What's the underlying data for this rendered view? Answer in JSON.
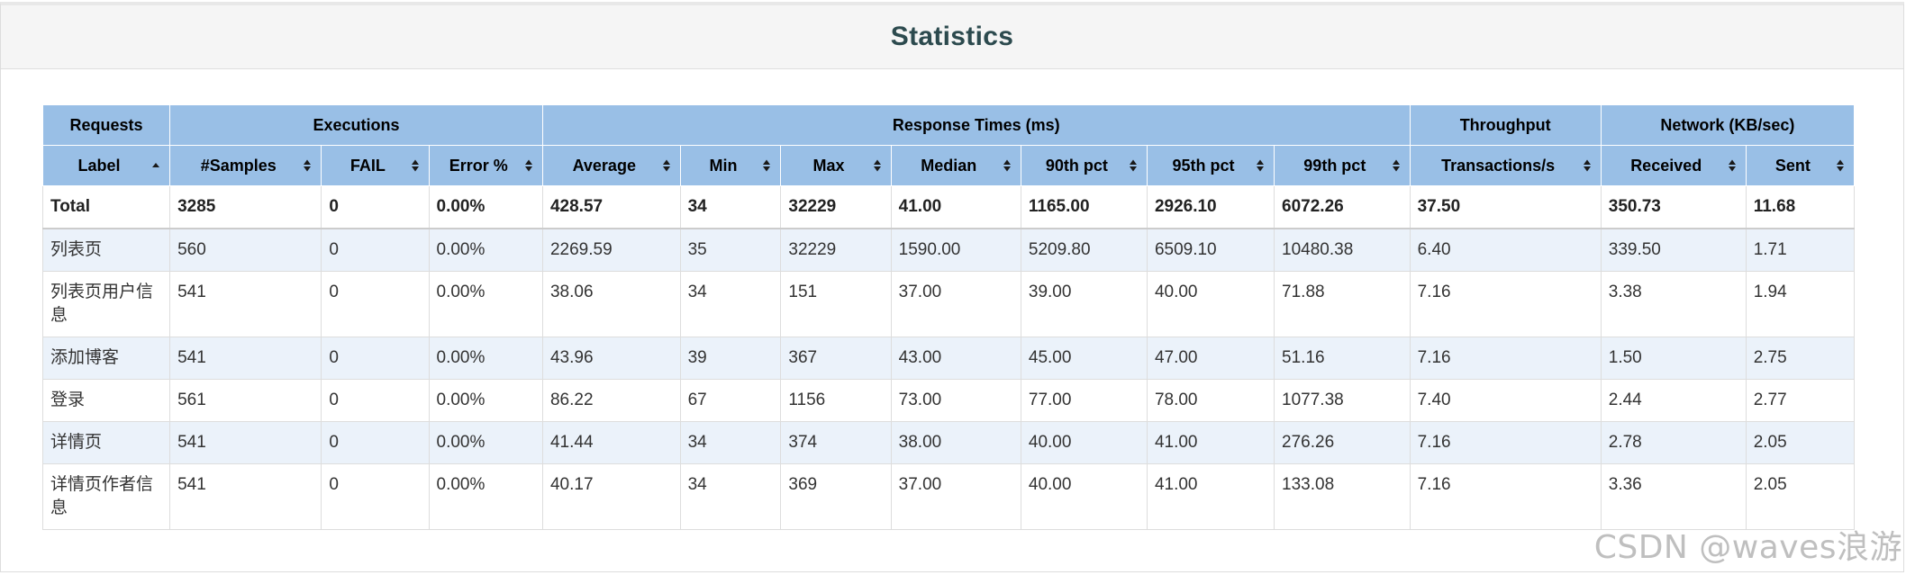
{
  "panel": {
    "title": "Statistics"
  },
  "table": {
    "groups": [
      {
        "label": "Requests",
        "span": 1
      },
      {
        "label": "Executions",
        "span": 3
      },
      {
        "label": "Response Times (ms)",
        "span": 7
      },
      {
        "label": "Throughput",
        "span": 1
      },
      {
        "label": "Network (KB/sec)",
        "span": 2
      }
    ],
    "columns": [
      {
        "label": "Label",
        "sort": "asc"
      },
      {
        "label": "#Samples",
        "sort": "both"
      },
      {
        "label": "FAIL",
        "sort": "both"
      },
      {
        "label": "Error %",
        "sort": "both"
      },
      {
        "label": "Average",
        "sort": "both"
      },
      {
        "label": "Min",
        "sort": "both"
      },
      {
        "label": "Max",
        "sort": "both"
      },
      {
        "label": "Median",
        "sort": "both"
      },
      {
        "label": "90th pct",
        "sort": "both"
      },
      {
        "label": "95th pct",
        "sort": "both"
      },
      {
        "label": "99th pct",
        "sort": "both"
      },
      {
        "label": "Transactions/s",
        "sort": "both"
      },
      {
        "label": "Received",
        "sort": "both"
      },
      {
        "label": "Sent",
        "sort": "both"
      }
    ],
    "total": [
      "Total",
      "3285",
      "0",
      "0.00%",
      "428.57",
      "34",
      "32229",
      "41.00",
      "1165.00",
      "2926.10",
      "6072.26",
      "37.50",
      "350.73",
      "11.68"
    ],
    "rows": [
      [
        "列表页",
        "560",
        "0",
        "0.00%",
        "2269.59",
        "35",
        "32229",
        "1590.00",
        "5209.80",
        "6509.10",
        "10480.38",
        "6.40",
        "339.50",
        "1.71"
      ],
      [
        "列表页用户信息",
        "541",
        "0",
        "0.00%",
        "38.06",
        "34",
        "151",
        "37.00",
        "39.00",
        "40.00",
        "71.88",
        "7.16",
        "3.38",
        "1.94"
      ],
      [
        "添加博客",
        "541",
        "0",
        "0.00%",
        "43.96",
        "39",
        "367",
        "43.00",
        "45.00",
        "47.00",
        "51.16",
        "7.16",
        "1.50",
        "2.75"
      ],
      [
        "登录",
        "561",
        "0",
        "0.00%",
        "86.22",
        "67",
        "1156",
        "73.00",
        "77.00",
        "78.00",
        "1077.38",
        "7.40",
        "2.44",
        "2.77"
      ],
      [
        "详情页",
        "541",
        "0",
        "0.00%",
        "41.44",
        "34",
        "374",
        "38.00",
        "40.00",
        "41.00",
        "276.26",
        "7.16",
        "2.78",
        "2.05"
      ],
      [
        "详情页作者信息",
        "541",
        "0",
        "0.00%",
        "40.17",
        "34",
        "369",
        "37.00",
        "40.00",
        "41.00",
        "133.08",
        "7.16",
        "3.36",
        "2.05"
      ]
    ]
  },
  "watermark": "CSDN @waves浪游",
  "colors": {
    "header_bg": "#99bfe6",
    "odd_row_bg": "#ebf2fa",
    "title_color": "#2c4a4e"
  }
}
